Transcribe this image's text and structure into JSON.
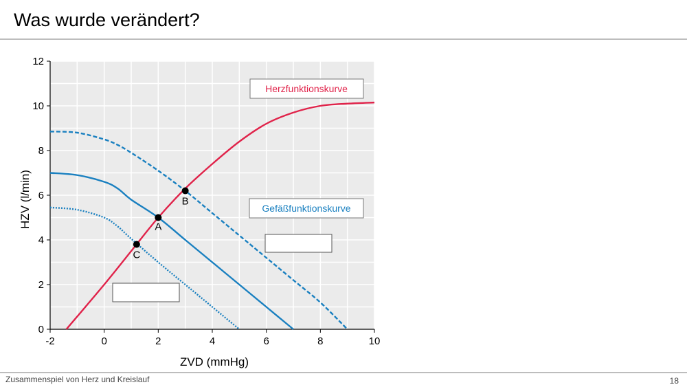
{
  "slide": {
    "title": "Was wurde verändert?",
    "footer": "Zusammenspiel von Herz und Kreislauf",
    "page_number": "18"
  },
  "chart_data": {
    "type": "line",
    "xlabel": "ZVD (mmHg)",
    "ylabel": "HZV (l/min)",
    "xlim": [
      -2,
      10
    ],
    "ylim": [
      0,
      12
    ],
    "xticks": [
      -2,
      0,
      2,
      4,
      6,
      8,
      10
    ],
    "yticks": [
      0,
      2,
      4,
      6,
      8,
      10,
      12
    ],
    "grid": true,
    "series": [
      {
        "name": "Herzfunktionskurve",
        "color": "#e0234a",
        "style": "solid",
        "x": [
          -1.4,
          0,
          1,
          2,
          3,
          4,
          5,
          6,
          7,
          8,
          9,
          10
        ],
        "y": [
          0,
          2.0,
          3.5,
          5.0,
          6.3,
          7.4,
          8.4,
          9.2,
          9.7,
          10.0,
          10.1,
          10.15
        ]
      },
      {
        "name": "Gefäßfunktionskurve",
        "color": "#1a80c0",
        "style": "solid",
        "x": [
          -2,
          -1,
          0,
          0.5,
          1,
          2,
          3,
          4,
          5,
          6,
          7
        ],
        "y": [
          7.0,
          6.9,
          6.6,
          6.3,
          5.8,
          5.0,
          4.0,
          3.0,
          2.0,
          1.0,
          0
        ]
      },
      {
        "color": "#1a80c0",
        "style": "dashed",
        "x": [
          -2,
          -1,
          0,
          0.5,
          1,
          2,
          3,
          4,
          5,
          6,
          7,
          8,
          9
        ],
        "y": [
          8.85,
          8.8,
          8.5,
          8.25,
          7.9,
          7.1,
          6.2,
          5.2,
          4.2,
          3.2,
          2.2,
          1.2,
          0
        ]
      },
      {
        "color": "#1a80c0",
        "style": "dotted",
        "x": [
          -2,
          -1,
          0,
          0.5,
          1,
          2,
          3,
          4,
          5
        ],
        "y": [
          5.45,
          5.35,
          5.0,
          4.6,
          4.05,
          3.0,
          2.0,
          1.0,
          0
        ]
      }
    ],
    "points": [
      {
        "label": "A",
        "x": 2.0,
        "y": 5.0
      },
      {
        "label": "B",
        "x": 3.0,
        "y": 6.2
      },
      {
        "label": "C",
        "x": 1.2,
        "y": 3.8
      }
    ],
    "annotations": [
      {
        "text": "Herzfunktionskurve",
        "color": "#e0234a"
      },
      {
        "text": "Gefäßfunktionskurve",
        "color": "#1a80c0"
      }
    ]
  }
}
